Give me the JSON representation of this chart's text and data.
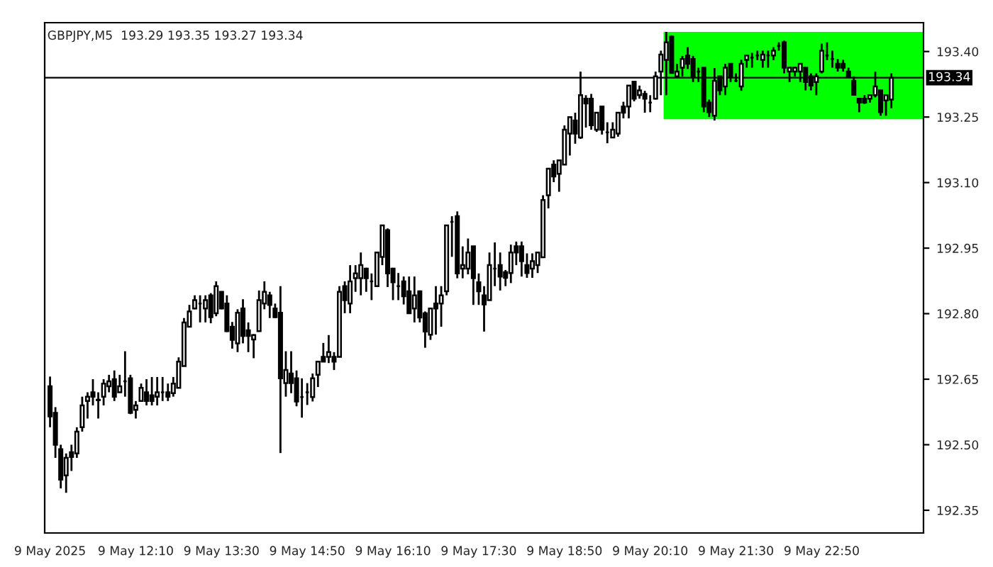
{
  "chart_data": {
    "type": "candlestick",
    "title": "GBPJPY,M5  193.29 193.35 193.27 193.34",
    "color": "#000000",
    "categories": [
      "9 May 2025",
      null,
      null,
      null,
      null,
      null,
      null,
      null,
      null,
      null,
      null,
      null,
      null,
      null,
      null,
      null,
      "9 May 12:10",
      null,
      null,
      null,
      null,
      null,
      null,
      null,
      null,
      null,
      null,
      null,
      null,
      null,
      null,
      null,
      "9 May 13:30",
      null,
      null,
      null,
      null,
      null,
      null,
      null,
      null,
      null,
      null,
      null,
      null,
      null,
      null,
      null,
      "9 May 14:50",
      null,
      null,
      null,
      null,
      null,
      null,
      null,
      null,
      null,
      null,
      null,
      null,
      null,
      null,
      null,
      "9 May 16:10",
      null,
      null,
      null,
      null,
      null,
      null,
      null,
      null,
      null,
      null,
      null,
      null,
      null,
      null,
      null,
      "9 May 17:30",
      null,
      null,
      null,
      null,
      null,
      null,
      null,
      null,
      null,
      null,
      null,
      null,
      null,
      null,
      null,
      "9 May 18:50",
      null,
      null,
      null,
      null,
      null,
      null,
      null,
      null,
      null,
      null,
      null,
      null,
      null,
      null,
      null,
      "9 May 20:10",
      null,
      null,
      null,
      null,
      null,
      null,
      null,
      null,
      null,
      null,
      null,
      null,
      null,
      null,
      null,
      "9 May 21:30",
      null,
      null,
      null,
      null,
      null,
      null,
      null,
      null,
      null,
      null,
      null,
      null,
      null,
      null,
      null,
      "9 May 22:50",
      null,
      null,
      null,
      null,
      null,
      null,
      null,
      null,
      null,
      null,
      null,
      null,
      null
    ],
    "ohlc": [
      [
        192.634,
        192.656,
        192.54,
        192.565
      ],
      [
        192.573,
        192.586,
        192.47,
        192.5
      ],
      [
        192.49,
        192.5,
        192.4,
        192.42
      ],
      [
        192.43,
        192.48,
        192.39,
        192.47
      ],
      [
        192.483,
        192.5,
        192.44,
        192.472
      ],
      [
        192.48,
        192.54,
        192.47,
        192.53
      ],
      [
        192.54,
        192.61,
        192.53,
        192.59
      ],
      [
        192.6,
        192.62,
        192.56,
        192.61
      ],
      [
        192.62,
        192.65,
        192.59,
        192.61
      ],
      [
        192.602,
        192.62,
        192.56,
        192.603
      ],
      [
        192.61,
        192.65,
        192.59,
        192.64
      ],
      [
        192.634,
        192.66,
        192.62,
        192.645
      ],
      [
        192.65,
        192.67,
        192.6,
        192.61
      ],
      [
        192.62,
        192.66,
        192.62,
        192.634
      ],
      [
        192.645,
        192.714,
        192.61,
        192.645
      ],
      [
        192.652,
        192.66,
        192.57,
        192.573
      ],
      [
        192.58,
        192.6,
        192.56,
        192.59
      ],
      [
        192.6,
        192.64,
        192.6,
        192.63
      ],
      [
        192.62,
        192.65,
        192.59,
        192.6
      ],
      [
        192.613,
        192.655,
        192.59,
        192.6
      ],
      [
        192.61,
        192.655,
        192.59,
        192.62
      ],
      [
        192.62,
        192.655,
        192.6,
        192.62
      ],
      [
        192.62,
        192.64,
        192.6,
        192.61
      ],
      [
        192.618,
        192.655,
        192.61,
        192.64
      ],
      [
        192.63,
        192.7,
        192.63,
        192.69
      ],
      [
        192.68,
        192.79,
        192.68,
        192.78
      ],
      [
        192.77,
        192.82,
        192.77,
        192.805
      ],
      [
        192.812,
        192.842,
        192.81,
        192.831
      ],
      [
        192.823,
        192.842,
        192.78,
        192.823
      ],
      [
        192.812,
        192.842,
        192.78,
        192.831
      ],
      [
        192.842,
        192.847,
        192.778,
        192.792
      ],
      [
        192.801,
        192.874,
        192.794,
        192.863
      ],
      [
        192.85,
        192.85,
        192.81,
        192.812
      ],
      [
        192.823,
        192.842,
        192.758,
        192.76
      ],
      [
        192.77,
        192.781,
        192.72,
        192.74
      ],
      [
        192.732,
        192.81,
        192.712,
        192.802
      ],
      [
        192.812,
        192.833,
        192.732,
        192.749
      ],
      [
        192.762,
        192.78,
        192.712,
        192.749
      ],
      [
        192.741,
        192.753,
        192.698,
        192.751
      ],
      [
        192.76,
        192.853,
        192.76,
        192.831
      ],
      [
        192.823,
        192.874,
        192.81,
        192.85
      ],
      [
        192.842,
        192.85,
        192.79,
        192.82
      ],
      [
        192.812,
        192.823,
        192.79,
        192.792
      ],
      [
        192.802,
        192.863,
        192.481,
        192.652
      ],
      [
        192.641,
        192.714,
        192.61,
        192.671
      ],
      [
        192.663,
        192.714,
        192.618,
        192.641
      ],
      [
        192.652,
        192.67,
        192.588,
        192.599
      ],
      [
        192.609,
        192.652,
        192.562,
        192.609
      ],
      [
        192.62,
        192.641,
        192.591,
        192.62
      ],
      [
        192.609,
        192.663,
        192.599,
        192.652
      ],
      [
        192.66,
        192.69,
        192.632,
        192.69
      ],
      [
        192.701,
        192.733,
        192.69,
        192.69
      ],
      [
        192.701,
        192.751,
        192.687,
        192.712
      ],
      [
        192.701,
        192.712,
        192.671,
        192.69
      ],
      [
        192.701,
        192.863,
        192.7,
        192.85
      ],
      [
        192.863,
        192.874,
        192.801,
        192.831
      ],
      [
        192.823,
        192.911,
        192.801,
        192.874
      ],
      [
        192.881,
        192.911,
        192.85,
        192.892
      ],
      [
        192.881,
        192.94,
        192.842,
        192.911
      ],
      [
        192.903,
        192.905,
        192.85,
        192.881
      ],
      [
        192.874,
        192.892,
        192.831,
        192.874
      ],
      [
        192.863,
        192.94,
        192.863,
        192.94
      ],
      [
        192.93,
        193.002,
        192.911,
        193.002
      ],
      [
        192.991,
        192.995,
        192.861,
        192.892
      ],
      [
        192.903,
        192.905,
        192.831,
        192.872
      ],
      [
        192.863,
        192.893,
        192.831,
        192.863
      ],
      [
        192.874,
        192.885,
        192.821,
        192.84
      ],
      [
        192.851,
        192.885,
        192.8,
        192.801
      ],
      [
        192.812,
        192.885,
        192.78,
        192.842
      ],
      [
        192.851,
        192.853,
        192.78,
        192.791
      ],
      [
        192.801,
        192.805,
        192.722,
        192.759
      ],
      [
        192.752,
        192.812,
        192.74,
        192.812
      ],
      [
        192.823,
        192.863,
        192.752,
        192.812
      ],
      [
        192.823,
        192.863,
        192.77,
        192.842
      ],
      [
        192.851,
        193.002,
        192.842,
        193.002
      ],
      [
        193.01,
        193.023,
        192.93,
        193.01
      ],
      [
        193.023,
        193.034,
        192.881,
        192.892
      ],
      [
        192.903,
        192.954,
        192.881,
        192.911
      ],
      [
        192.903,
        192.972,
        192.89,
        192.94
      ],
      [
        192.954,
        192.954,
        192.82,
        192.881
      ],
      [
        192.872,
        192.892,
        192.82,
        192.851
      ],
      [
        192.842,
        192.863,
        192.759,
        192.821
      ],
      [
        192.831,
        192.94,
        192.831,
        192.911
      ],
      [
        192.903,
        192.963,
        192.863,
        192.903
      ],
      [
        192.911,
        192.94,
        192.853,
        192.885
      ],
      [
        192.895,
        192.9,
        192.863,
        192.882
      ],
      [
        192.893,
        192.958,
        192.87,
        192.94
      ],
      [
        192.954,
        192.965,
        192.911,
        192.94
      ],
      [
        192.954,
        192.965,
        192.885,
        192.92
      ],
      [
        192.911,
        192.938,
        192.882,
        192.893
      ],
      [
        192.903,
        192.938,
        192.882,
        192.92
      ],
      [
        192.911,
        192.94,
        192.893,
        192.94
      ],
      [
        192.929,
        193.071,
        192.929,
        193.06
      ],
      [
        193.071,
        193.132,
        193.041,
        193.132
      ],
      [
        193.141,
        193.151,
        193.101,
        193.114
      ],
      [
        193.12,
        193.151,
        193.079,
        193.151
      ],
      [
        193.141,
        193.231,
        193.141,
        193.221
      ],
      [
        193.212,
        193.25,
        193.162,
        193.25
      ],
      [
        193.242,
        193.26,
        193.189,
        193.212
      ],
      [
        193.203,
        193.354,
        193.2,
        193.3
      ],
      [
        193.292,
        193.3,
        193.226,
        193.281
      ],
      [
        193.292,
        193.303,
        193.221,
        193.231
      ],
      [
        193.221,
        193.26,
        193.216,
        193.26
      ],
      [
        193.274,
        193.274,
        193.21,
        193.221
      ],
      [
        193.215,
        193.238,
        193.19,
        193.215
      ],
      [
        193.203,
        193.238,
        193.203,
        193.221
      ],
      [
        193.212,
        193.26,
        193.205,
        193.26
      ],
      [
        193.274,
        193.285,
        193.247,
        193.26
      ],
      [
        193.274,
        193.322,
        193.247,
        193.322
      ],
      [
        193.331,
        193.331,
        193.286,
        193.292
      ],
      [
        193.3,
        193.322,
        193.292,
        193.311
      ],
      [
        193.303,
        193.31,
        193.26,
        193.292
      ],
      [
        193.283,
        193.3,
        193.261,
        193.283
      ],
      [
        193.292,
        193.354,
        193.29,
        193.343
      ],
      [
        193.354,
        193.402,
        193.3,
        193.393
      ],
      [
        193.381,
        193.445,
        193.3,
        193.421
      ],
      [
        193.434,
        193.437,
        193.35,
        193.351
      ],
      [
        193.343,
        193.372,
        193.341,
        193.354
      ],
      [
        193.363,
        193.39,
        193.343,
        193.383
      ],
      [
        193.391,
        193.41,
        193.36,
        193.372
      ],
      [
        193.383,
        193.39,
        193.33,
        193.343
      ],
      [
        193.354,
        193.363,
        193.33,
        193.354
      ],
      [
        193.363,
        193.363,
        193.261,
        193.274
      ],
      [
        193.283,
        193.29,
        193.25,
        193.261
      ],
      [
        193.253,
        193.362,
        193.242,
        193.333
      ],
      [
        193.343,
        193.343,
        193.3,
        193.311
      ],
      [
        193.32,
        193.372,
        193.3,
        193.363
      ],
      [
        193.372,
        193.372,
        193.33,
        193.343
      ],
      [
        193.333,
        193.35,
        193.33,
        193.333
      ],
      [
        193.32,
        193.381,
        193.31,
        193.372
      ],
      [
        193.381,
        193.391,
        193.363,
        193.391
      ],
      [
        193.386,
        193.397,
        193.363,
        193.386
      ],
      [
        193.391,
        193.402,
        193.38,
        193.391
      ],
      [
        193.381,
        193.402,
        193.363,
        193.393
      ],
      [
        193.391,
        193.402,
        193.363,
        193.391
      ],
      [
        193.391,
        193.41,
        193.38,
        193.402
      ],
      [
        193.413,
        193.421,
        193.402,
        193.413
      ],
      [
        193.421,
        193.425,
        193.35,
        193.363
      ],
      [
        193.354,
        193.365,
        193.33,
        193.363
      ],
      [
        193.354,
        193.365,
        193.343,
        193.363
      ],
      [
        193.354,
        193.372,
        193.33,
        193.372
      ],
      [
        193.363,
        193.363,
        193.311,
        193.33
      ],
      [
        193.343,
        193.35,
        193.311,
        193.322
      ],
      [
        193.33,
        193.35,
        193.3,
        193.343
      ],
      [
        193.354,
        193.418,
        193.35,
        193.402
      ],
      [
        193.391,
        193.421,
        193.38,
        193.391
      ],
      [
        193.383,
        193.402,
        193.363,
        193.383
      ],
      [
        193.372,
        193.383,
        193.354,
        193.363
      ],
      [
        193.372,
        193.381,
        193.354,
        193.363
      ],
      [
        193.354,
        193.363,
        193.343,
        193.343
      ],
      [
        193.333,
        193.343,
        193.3,
        193.301
      ],
      [
        193.292,
        193.292,
        193.261,
        193.283
      ],
      [
        193.292,
        193.3,
        193.28,
        193.283
      ],
      [
        193.292,
        193.3,
        193.283,
        193.3
      ],
      [
        193.3,
        193.354,
        193.295,
        193.32
      ],
      [
        193.311,
        193.311,
        193.253,
        193.261
      ],
      [
        193.288,
        193.301,
        193.253,
        193.3
      ],
      [
        193.29,
        193.35,
        193.27,
        193.34
      ]
    ],
    "ylim": [
      192.298,
      193.466
    ],
    "yticks": [
      192.35,
      {
        "value": 192.5,
        "label": "192.50"
      },
      192.65,
      {
        "value": 192.8,
        "label": "192.80"
      },
      192.95,
      {
        "value": 193.1,
        "label": "193.10"
      },
      193.25,
      {
        "value": 193.4,
        "label": "193.40"
      }
    ],
    "ref_lines": [
      {
        "axis": "y",
        "value": 193.34,
        "label": "193.34",
        "color": "#000000"
      }
    ],
    "bands": [
      {
        "axis": "y",
        "from": 193.245,
        "to": 193.445,
        "color": "#00ff00"
      }
    ],
    "grid": false,
    "legend": false
  }
}
